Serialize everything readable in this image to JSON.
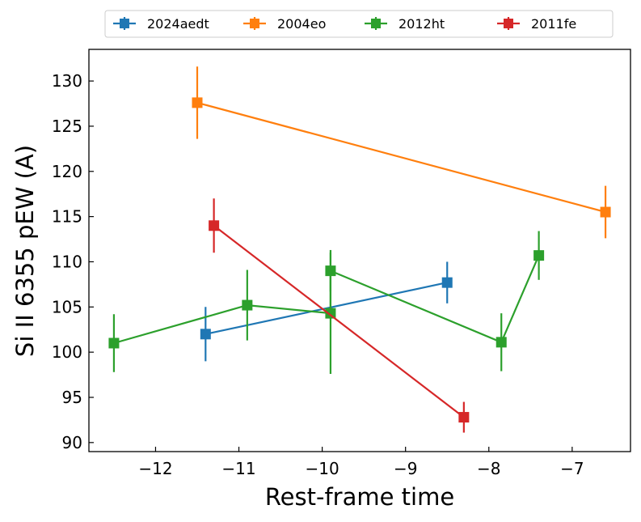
{
  "chart_data": {
    "type": "line",
    "title": "",
    "xlabel": "Rest-frame time",
    "ylabel": "Si II 6355 pEW (A)",
    "xlim": [
      -12.8,
      -6.3
    ],
    "ylim": [
      89,
      133.5
    ],
    "x_ticks": [
      -12,
      -11,
      -10,
      -9,
      -8,
      -7
    ],
    "x_tick_labels": [
      "−12",
      "−11",
      "−10",
      "−9",
      "−8",
      "−7"
    ],
    "y_ticks": [
      90,
      95,
      100,
      105,
      110,
      115,
      120,
      125,
      130
    ],
    "y_tick_labels": [
      "90",
      "95",
      "100",
      "105",
      "110",
      "115",
      "120",
      "125",
      "130"
    ],
    "grid": false,
    "legend_position": "top, outside plot",
    "series": [
      {
        "name": "2024aedt",
        "color": "#1f77b4",
        "x": [
          -11.4,
          -8.5
        ],
        "y": [
          102.0,
          107.7
        ],
        "yerr": [
          3.0,
          2.3
        ]
      },
      {
        "name": "2004eo",
        "color": "#ff7f0e",
        "x": [
          -11.5,
          -6.6
        ],
        "y": [
          127.6,
          115.5
        ],
        "yerr": [
          4.0,
          2.9
        ]
      },
      {
        "name": "2012ht",
        "color": "#2ca02c",
        "x": [
          -12.5,
          -10.9,
          -9.9,
          -9.9,
          -7.85,
          -7.4
        ],
        "y": [
          101.0,
          105.2,
          104.3,
          109.0,
          101.1,
          110.7
        ],
        "yerr": [
          3.2,
          3.9,
          6.7,
          2.3,
          3.2,
          2.7
        ]
      },
      {
        "name": "2011fe",
        "color": "#d62728",
        "x": [
          -11.3,
          -8.3
        ],
        "y": [
          114.0,
          92.8
        ],
        "yerr": [
          3.0,
          1.7
        ]
      }
    ]
  }
}
